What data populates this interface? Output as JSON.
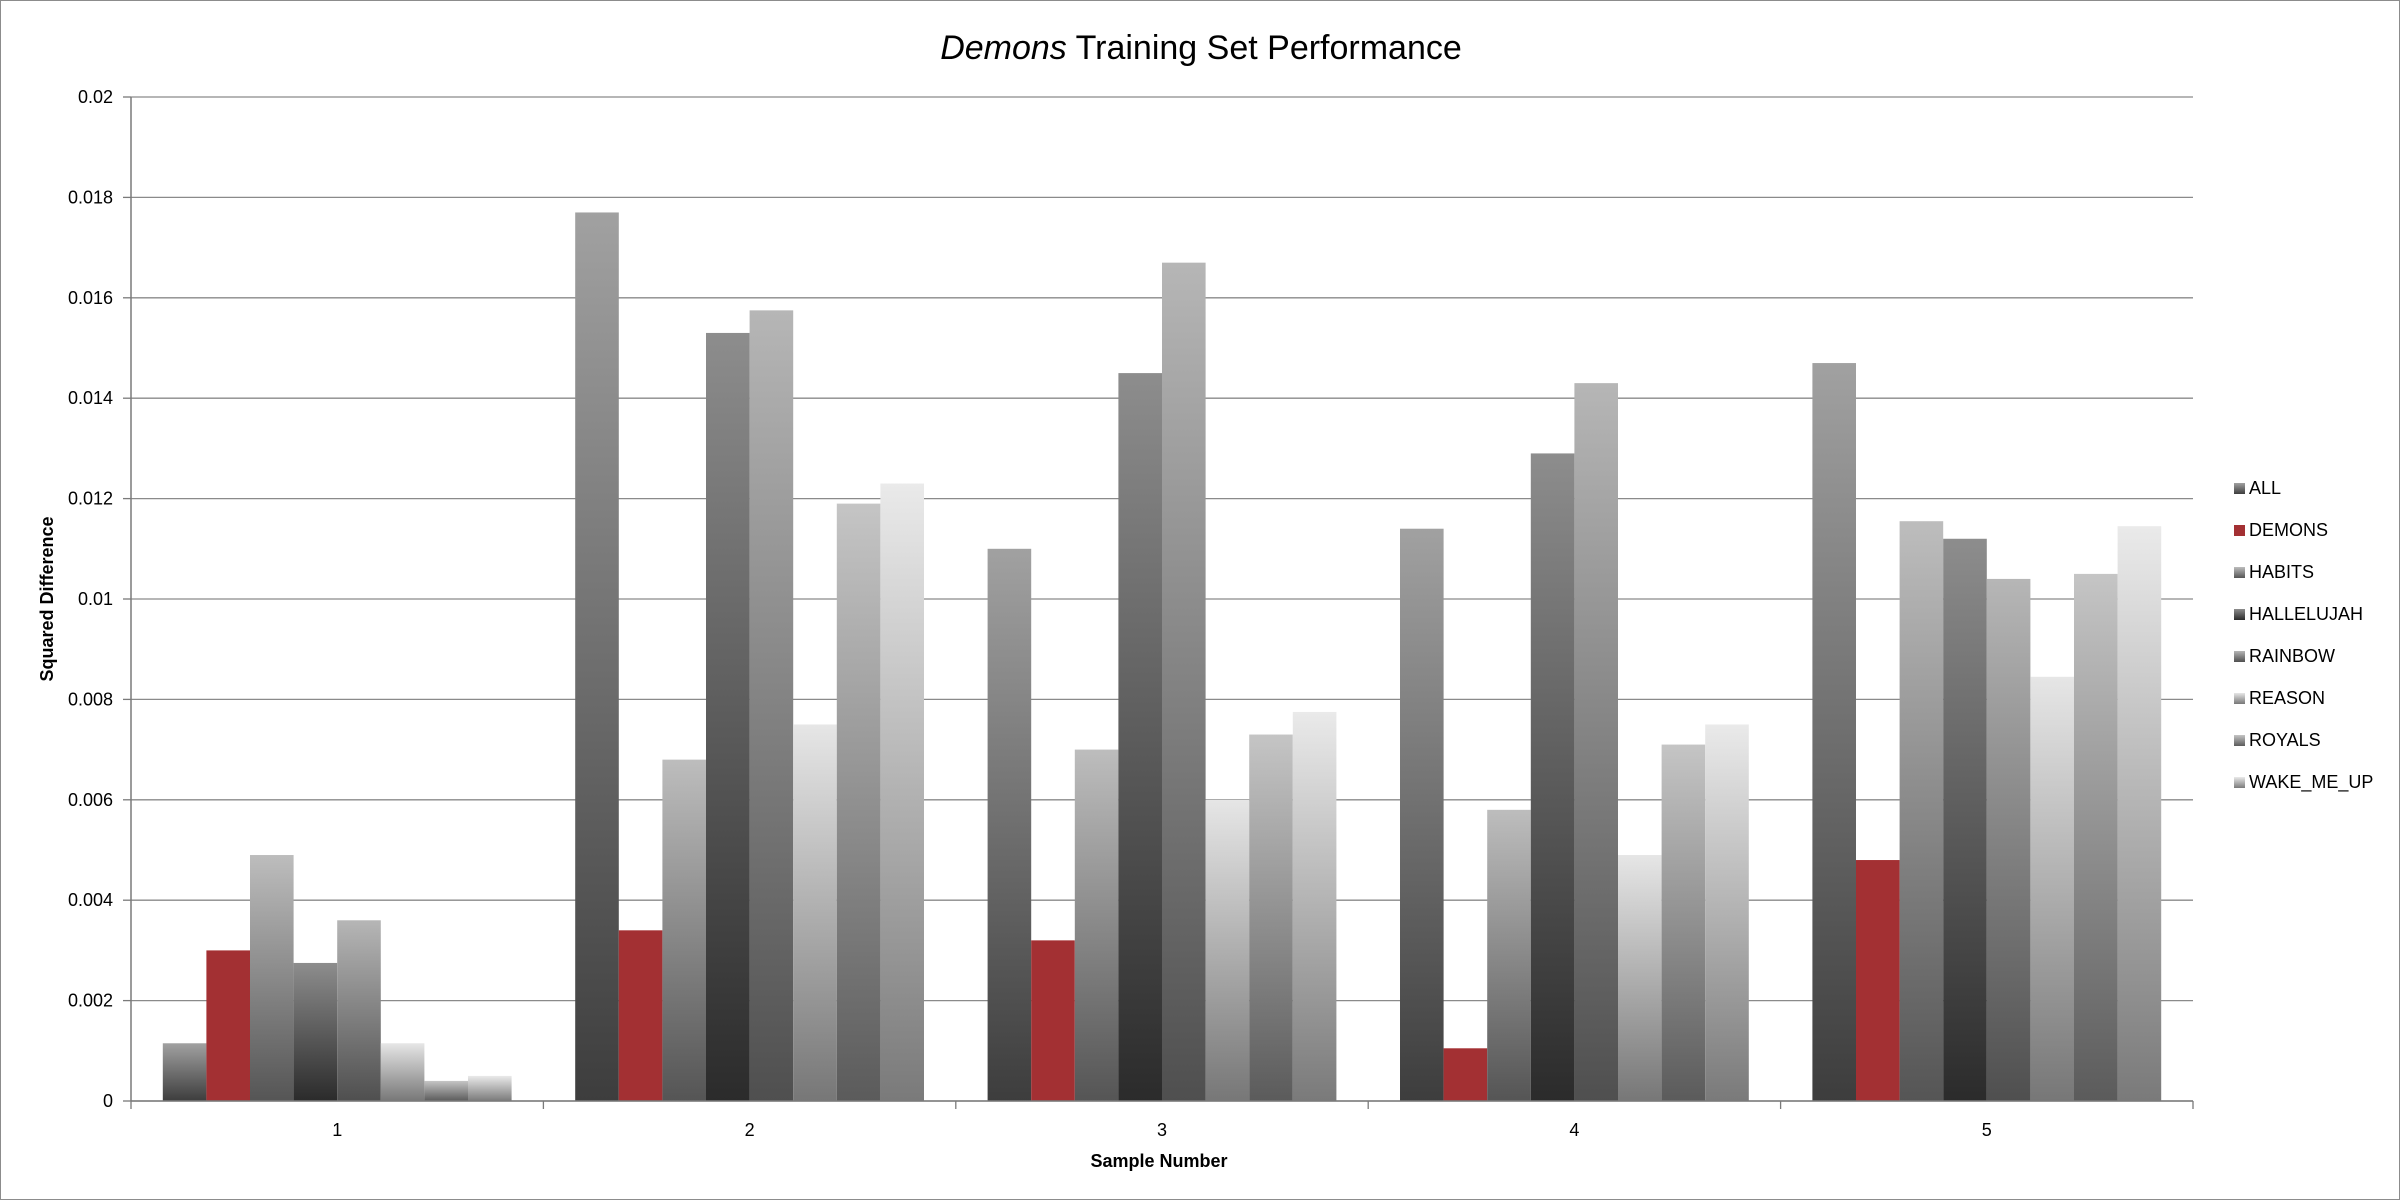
{
  "chart_data": {
    "type": "bar",
    "title_italic": "Demons",
    "title_rest": " Training Set Performance",
    "xlabel": "Sample Number",
    "ylabel": "Squared Difference",
    "ylim": [
      0,
      0.02
    ],
    "yticks": [
      "0",
      "0.002",
      "0.004",
      "0.006",
      "0.008",
      "0.01",
      "0.012",
      "0.014",
      "0.016",
      "0.018",
      "0.02"
    ],
    "categories": [
      "1",
      "2",
      "3",
      "4",
      "5"
    ],
    "grid": true,
    "legend_position": "right",
    "series": [
      {
        "name": "ALL",
        "values": [
          0.00115,
          0.0177,
          0.011,
          0.0114,
          0.0147
        ],
        "color": "#6f6f6f"
      },
      {
        "name": "DEMONS",
        "values": [
          0.003,
          0.0034,
          0.0032,
          0.00105,
          0.0048
        ],
        "color": "#a33033"
      },
      {
        "name": "HABITS",
        "values": [
          0.0049,
          0.0068,
          0.007,
          0.0058,
          0.01155
        ],
        "color": "#9a9a9a"
      },
      {
        "name": "HALLELUJAH",
        "values": [
          0.00275,
          0.0153,
          0.0145,
          0.0129,
          0.0112
        ],
        "color": "#4f4f4f"
      },
      {
        "name": "RAINBOW",
        "values": [
          0.0036,
          0.01575,
          0.0167,
          0.0143,
          0.0104
        ],
        "color": "#8f8f8f"
      },
      {
        "name": "REASON",
        "values": [
          0.00115,
          0.0075,
          0.006,
          0.0049,
          0.00845
        ],
        "color": "#d9d9d9"
      },
      {
        "name": "ROYALS",
        "values": [
          0.0004,
          0.0119,
          0.0073,
          0.0071,
          0.0105
        ],
        "color": "#a6a6a6"
      },
      {
        "name": "WAKE_ME_UP",
        "values": [
          0.0005,
          0.0123,
          0.00775,
          0.0075,
          0.01145
        ],
        "color": "#dedede"
      }
    ]
  }
}
